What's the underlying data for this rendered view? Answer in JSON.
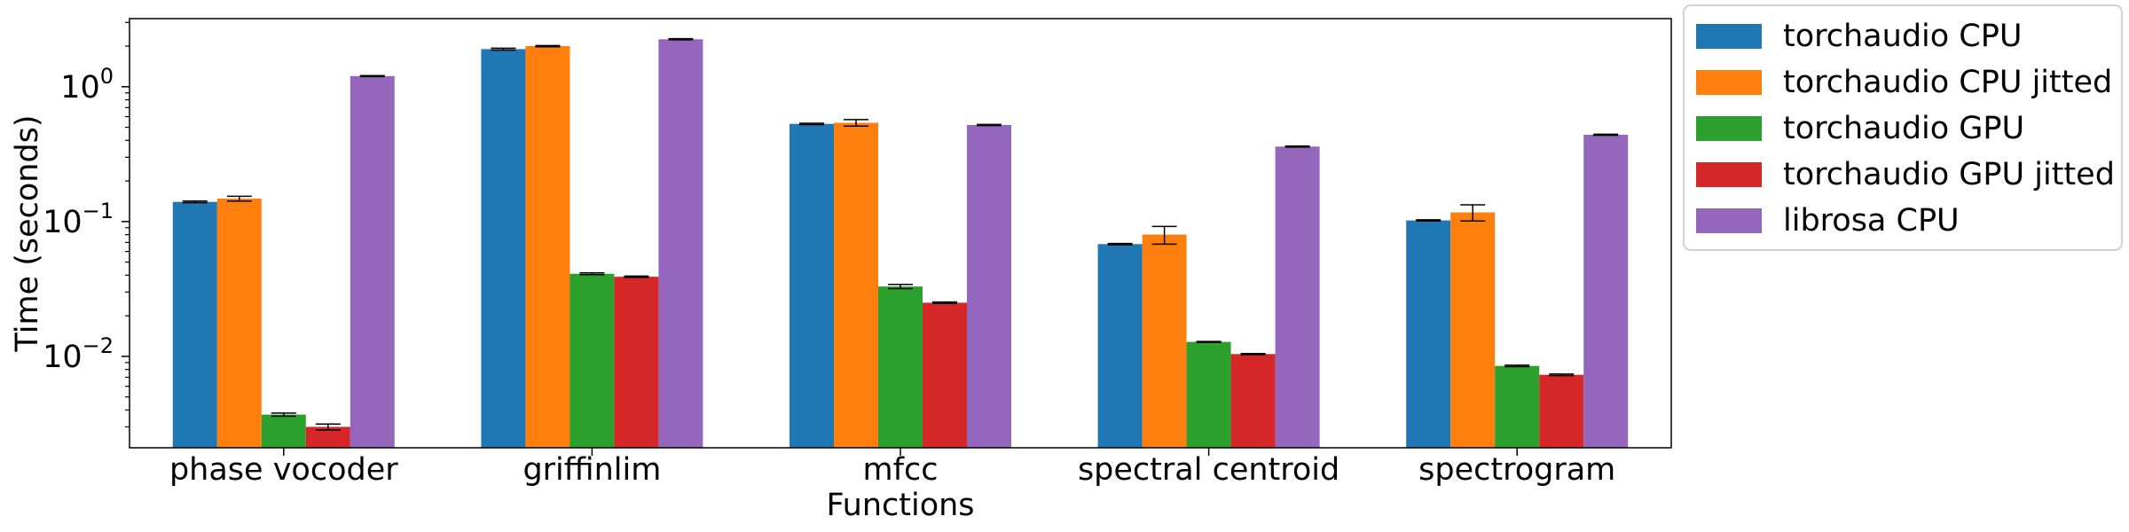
{
  "chart_data": {
    "type": "bar",
    "xlabel": "Functions",
    "ylabel": "Time (seconds)",
    "yscale": "log",
    "ylim": [
      0.0021,
      3.2
    ],
    "y_ticks": [
      {
        "value": 0.01,
        "base": "10",
        "exp": "−2"
      },
      {
        "value": 0.1,
        "base": "10",
        "exp": "−1"
      },
      {
        "value": 1,
        "base": "10",
        "exp": "0"
      }
    ],
    "categories": [
      "phase vocoder",
      "griffinlim",
      "mfcc",
      "spectral centroid",
      "spectrogram"
    ],
    "series": [
      {
        "name": "torchaudio CPU",
        "color": "#1f77b4",
        "values": [
          0.14,
          1.9,
          0.53,
          0.068,
          0.102
        ],
        "errors": [
          0.002,
          0.03,
          0.006,
          0.0008,
          0.001
        ]
      },
      {
        "name": "torchaudio CPU jitted",
        "color": "#ff7f0e",
        "values": [
          0.148,
          2.0,
          0.54,
          0.08,
          0.117
        ],
        "errors": [
          0.006,
          0.02,
          0.03,
          0.012,
          0.016
        ]
      },
      {
        "name": "torchaudio GPU",
        "color": "#2ca02c",
        "values": [
          0.0037,
          0.041,
          0.033,
          0.0128,
          0.0085
        ],
        "errors": [
          0.0001,
          0.0006,
          0.0012,
          0.0001,
          0.0001
        ]
      },
      {
        "name": "torchaudio GPU jitted",
        "color": "#d62728",
        "values": [
          0.003,
          0.039,
          0.025,
          0.0104,
          0.0073
        ],
        "errors": [
          0.00015,
          0.0004,
          0.0003,
          0.0001,
          0.0001
        ]
      },
      {
        "name": "librosa CPU",
        "color": "#9467bd",
        "values": [
          1.2,
          2.25,
          0.52,
          0.36,
          0.44
        ],
        "errors": [
          0.01,
          0.02,
          0.005,
          0.003,
          0.004
        ]
      }
    ],
    "legend": "outside-right-top",
    "grid": false
  }
}
